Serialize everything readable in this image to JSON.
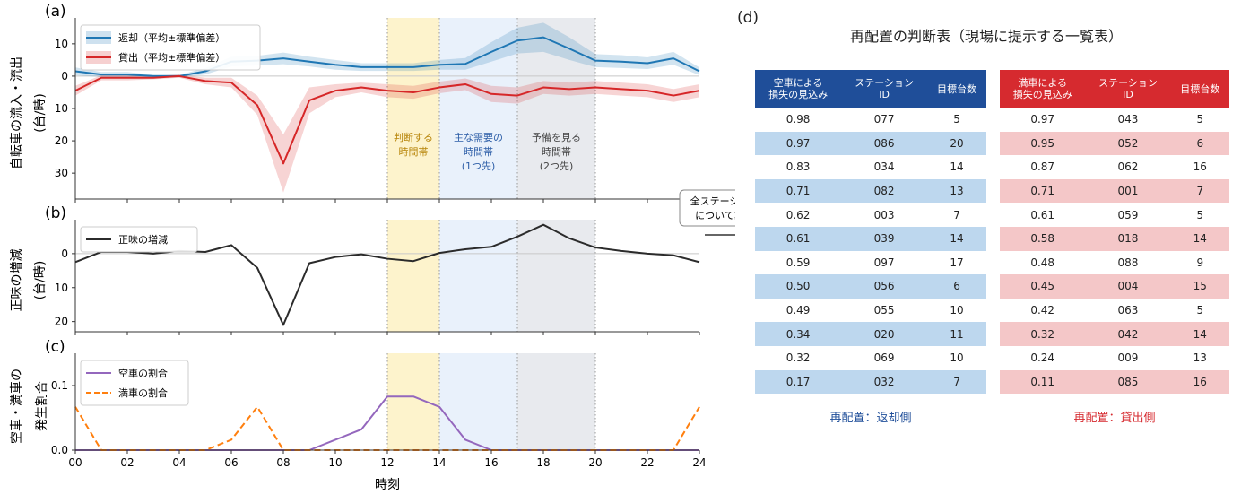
{
  "annotation": {
    "note_line1": "全ステーション",
    "note_line2": "について算出"
  },
  "chart_data": [
    {
      "panel": "(a)",
      "type": "line",
      "ylabel_line1": "自転車の流入・流出",
      "ylabel_line2": "(台/時)",
      "xlim": [
        0,
        24
      ],
      "ylim": [
        -38,
        18
      ],
      "yticks": [
        10,
        0,
        -10,
        -20,
        -30
      ],
      "ytick_labels": [
        "10",
        "0",
        "10",
        "20",
        "30"
      ],
      "x": [
        0,
        1,
        2,
        3,
        4,
        5,
        6,
        7,
        8,
        9,
        10,
        11,
        12,
        13,
        14,
        15,
        16,
        17,
        18,
        19,
        20,
        21,
        22,
        23,
        24
      ],
      "series": [
        {
          "name": "返却（平均±標準偏差）",
          "color": "#1f77b4",
          "values": [
            1.5,
            0.5,
            0.5,
            0,
            0,
            1.5,
            4.5,
            4.8,
            5.5,
            4.5,
            3.5,
            2.8,
            2.8,
            2.8,
            3.5,
            3.8,
            7.5,
            11.0,
            12.0,
            8.5,
            4.8,
            4.5,
            4.0,
            5.5,
            1.5
          ],
          "std": [
            1.2,
            0.8,
            0.8,
            0.4,
            0.4,
            1.0,
            1.5,
            1.5,
            1.8,
            1.5,
            1.5,
            1.2,
            1.2,
            1.2,
            1.5,
            1.8,
            3.0,
            4.0,
            4.5,
            3.5,
            2.0,
            2.0,
            1.8,
            2.0,
            1.2
          ]
        },
        {
          "name": "貸出（平均±標準偏差）",
          "color": "#d62728",
          "values": [
            -4.5,
            -0.5,
            -0.5,
            -0.5,
            0,
            -1.5,
            -2.0,
            -9.0,
            -27.0,
            -7.5,
            -4.5,
            -3.5,
            -4.5,
            -5.0,
            -3.5,
            -2.5,
            -5.5,
            -6.0,
            -3.5,
            -4.0,
            -3.5,
            -4.0,
            -4.5,
            -6.0,
            -4.5
          ],
          "std": [
            1.5,
            0.8,
            0.8,
            0.5,
            0.5,
            1.0,
            1.5,
            3.0,
            9.0,
            4.0,
            2.0,
            1.5,
            2.0,
            2.0,
            1.8,
            1.8,
            2.5,
            2.5,
            2.0,
            2.0,
            2.0,
            2.0,
            2.0,
            2.0,
            2.0
          ]
        }
      ],
      "bands": [
        {
          "x0": 12,
          "x1": 14,
          "color": "#fdf3cc",
          "label_line1": "判断する",
          "label_line2": "時間帯",
          "label_line3": "",
          "label_color": "#b8860b"
        },
        {
          "x0": 14,
          "x1": 17,
          "color": "#e9f1fb",
          "label_line1": "主な需要の",
          "label_line2": "時間帯",
          "label_line3": "(1つ先)",
          "label_color": "#2e5fa8"
        },
        {
          "x0": 17,
          "x1": 20,
          "color": "#e8eaee",
          "label_line1": "予備を見る",
          "label_line2": "時間帯",
          "label_line3": "(2つ先)",
          "label_color": "#444444"
        }
      ]
    },
    {
      "panel": "(b)",
      "type": "line",
      "ylabel_line1": "正味の増減",
      "ylabel_line2": "(台/時)",
      "xlim": [
        0,
        24
      ],
      "ylim": [
        -23,
        10
      ],
      "yticks": [
        0,
        -10,
        -20
      ],
      "ytick_labels": [
        "0",
        "10",
        "20"
      ],
      "x": [
        0,
        1,
        2,
        3,
        4,
        5,
        6,
        7,
        8,
        9,
        10,
        11,
        12,
        13,
        14,
        15,
        16,
        17,
        18,
        19,
        20,
        21,
        22,
        23,
        24
      ],
      "series": [
        {
          "name": "正味の増減",
          "color": "#2b2b2b",
          "values": [
            -2.5,
            0.5,
            0.5,
            0,
            0.8,
            0.5,
            2.5,
            -4.2,
            -21.0,
            -2.8,
            -1.0,
            -0.2,
            -1.5,
            -2.2,
            0.2,
            1.3,
            2.0,
            5.0,
            8.5,
            4.5,
            1.8,
            0.8,
            0,
            -0.5,
            -2.5
          ]
        }
      ]
    },
    {
      "panel": "(c)",
      "type": "line",
      "ylabel_line1": "空車・満車の",
      "ylabel_line2": "発生割合",
      "xlabel": "時刻",
      "xlim": [
        0,
        24
      ],
      "ylim": [
        0,
        0.15
      ],
      "yticks": [
        0.0,
        0.1
      ],
      "ytick_labels": [
        "0.0",
        "0.1"
      ],
      "xticks": [
        0,
        2,
        4,
        6,
        8,
        10,
        12,
        14,
        16,
        18,
        20,
        22,
        24
      ],
      "xtick_labels": [
        "00",
        "02",
        "04",
        "06",
        "08",
        "10",
        "12",
        "14",
        "16",
        "18",
        "20",
        "22",
        "24"
      ],
      "x": [
        0,
        1,
        2,
        3,
        4,
        5,
        6,
        7,
        8,
        9,
        10,
        11,
        12,
        13,
        14,
        15,
        16,
        17,
        18,
        19,
        20,
        21,
        22,
        23,
        24
      ],
      "series": [
        {
          "name": "空車の割合",
          "color": "#9467bd",
          "dash": false,
          "values": [
            0,
            0,
            0,
            0,
            0,
            0,
            0,
            0,
            0,
            0,
            0.016,
            0.032,
            0.083,
            0.083,
            0.067,
            0.016,
            0,
            0,
            0,
            0,
            0,
            0,
            0,
            0,
            0
          ]
        },
        {
          "name": "満車の割合",
          "color": "#ff7f0e",
          "dash": true,
          "values": [
            0.067,
            0,
            0,
            0,
            0,
            0,
            0.016,
            0.067,
            0,
            0,
            0,
            0,
            0,
            0,
            0,
            0,
            0,
            0,
            0,
            0,
            0,
            0,
            0,
            0,
            0.067
          ]
        }
      ]
    },
    {
      "panel": "(d)",
      "type": "table",
      "title": "再配置の判断表（現場に提示する一覧表）",
      "tables": [
        {
          "headers": [
            "空車による\n損失の見込み",
            "ステーション\nID",
            "目標台数"
          ],
          "rows": [
            [
              "0.98",
              "077",
              "5"
            ],
            [
              "0.97",
              "086",
              "20"
            ],
            [
              "0.83",
              "034",
              "14"
            ],
            [
              "0.71",
              "082",
              "13"
            ],
            [
              "0.62",
              "003",
              "7"
            ],
            [
              "0.61",
              "039",
              "14"
            ],
            [
              "0.59",
              "097",
              "17"
            ],
            [
              "0.50",
              "056",
              "6"
            ],
            [
              "0.49",
              "055",
              "10"
            ],
            [
              "0.34",
              "020",
              "11"
            ],
            [
              "0.32",
              "069",
              "10"
            ],
            [
              "0.17",
              "032",
              "7"
            ]
          ],
          "caption": "再配置：返却側"
        },
        {
          "headers": [
            "満車による\n損失の見込み",
            "ステーション\nID",
            "目標台数"
          ],
          "rows": [
            [
              "0.97",
              "043",
              "5"
            ],
            [
              "0.95",
              "052",
              "6"
            ],
            [
              "0.87",
              "062",
              "16"
            ],
            [
              "0.71",
              "001",
              "7"
            ],
            [
              "0.61",
              "059",
              "5"
            ],
            [
              "0.58",
              "018",
              "14"
            ],
            [
              "0.48",
              "088",
              "9"
            ],
            [
              "0.45",
              "004",
              "15"
            ],
            [
              "0.42",
              "063",
              "5"
            ],
            [
              "0.32",
              "042",
              "14"
            ],
            [
              "0.24",
              "009",
              "13"
            ],
            [
              "0.11",
              "085",
              "16"
            ]
          ],
          "caption": "再配置：貸出側"
        }
      ]
    }
  ]
}
